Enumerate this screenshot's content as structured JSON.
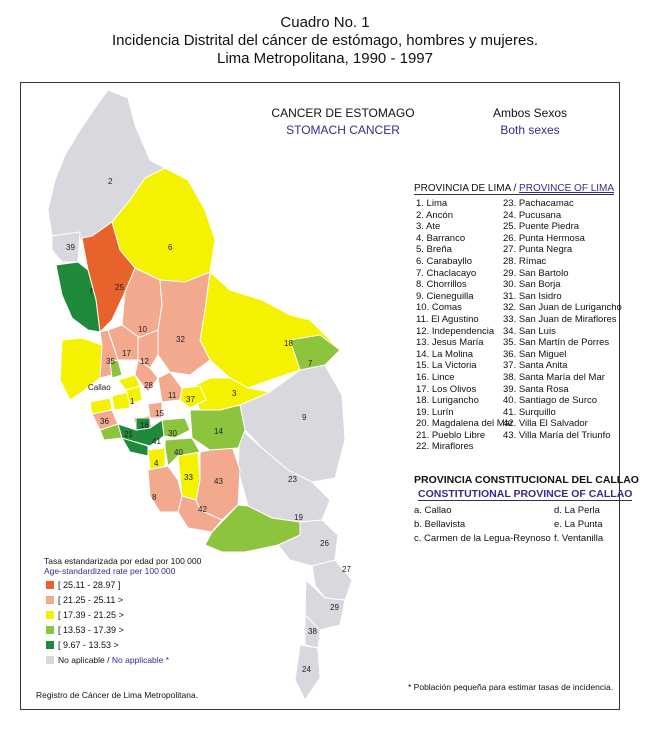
{
  "header": {
    "line1": "Cuadro No. 1",
    "line2": "Incidencia Distrital del cáncer de estómago, hombres y mujeres.",
    "line3": "Lima Metropolitana, 1990 - 1997"
  },
  "map_header": {
    "cancer_es": "CANCER DE ESTOMAGO",
    "cancer_en": "STOMACH CANCER",
    "sex_es": "Ambos Sexos",
    "sex_en": "Both sexes"
  },
  "province_lima": {
    "title_es": "PROVINCIA DE LIMA /",
    "title_en": "PROVINCE OF LIMA",
    "col1": [
      "1. Lima",
      "2. Ancón",
      "3. Ate",
      "4. Barranco",
      "5. Breña",
      "6. Carabayllo",
      "7. Chaclacayo",
      "8. Chorrillos",
      "9. Cieneguilla",
      "10. Comas",
      "11. El Agustino",
      "12. Independencia",
      "13. Jesus María",
      "14. La Molina",
      "15. La Victoria",
      "16. Lince",
      "17. Los Olivos",
      "18. Lurigancho",
      "19. Lurín",
      "20. Magdalena del Mar",
      "21. Pueblo Libre",
      "22. Miraflores"
    ],
    "col2": [
      "23. Pachacamac",
      "24. Pucusana",
      "25. Puente Piedra",
      "26. Punta Hermosa",
      "27. Punta Negra",
      "28. Rímac",
      "29. San Bartolo",
      "30. San Borja",
      "31. San Isidro",
      "32. San Juan de Lurigancho",
      "33. San Juan de Miraflores",
      "34. San Luis",
      "35. San Martín de Porres",
      "36. San Miguel",
      "37. Santa Anita",
      "38. Santa María del Mar",
      "39. Santa Rosa",
      "40. Santiago de Surco",
      "41. Surquillo",
      "42. Villa El Salvador",
      "43. Villa María del Triunfo"
    ]
  },
  "province_callao": {
    "title_es": "PROVINCIA CONSTITUCIONAL DEL CALLAO",
    "title_en": "CONSTITUTIONAL PROVINCE OF CALLAO",
    "col1": [
      "a. Callao",
      "b. Bellavista",
      "c. Carmen de la Legua-Reynoso"
    ],
    "col2": [
      "d. La Perla",
      "e. La Punta",
      "f. Ventanilla"
    ]
  },
  "legend": {
    "title_es": "Tasa estandarizada  por edad  por 100 000",
    "title_en": "Age-standardized  rate per 100 000",
    "items": [
      {
        "label": "[ 25.11 - 28.97 ]",
        "color": "#e8632c"
      },
      {
        "label": "[ 21.25 - 25.11 >",
        "color": "#f2a98e"
      },
      {
        "label": "[ 17.39 - 21.25 >",
        "color": "#f5f200"
      },
      {
        "label": "[ 13.53 - 17.39 >",
        "color": "#8cc43e"
      },
      {
        "label": "[   9.67 - 13.53 >",
        "color": "#1f8a3a"
      }
    ],
    "na_es": "No aplicable /",
    "na_en": "No applicable",
    "na_star": "*",
    "na_color": "#d9d8de"
  },
  "map_labels": {
    "d2": "2",
    "d39": "39",
    "d6": "6",
    "d25": "25",
    "df": "f",
    "d10": "10",
    "d32": "32",
    "d17": "17",
    "d35": "35",
    "d12": "12",
    "d18": "18",
    "d7": "7",
    "d28": "28",
    "callao": "Callao",
    "d3": "3",
    "d37": "37",
    "d9": "9",
    "d14": "14",
    "d30": "30",
    "d40": "40",
    "d4": "4",
    "d33": "33",
    "d43": "43",
    "d8": "8",
    "d42": "42",
    "d23": "23",
    "d19": "19",
    "d26": "26",
    "d27": "27",
    "d29": "29",
    "d38": "38",
    "d24": "24",
    "d1": "1",
    "d15": "15",
    "d16": "16",
    "d36": "36",
    "d21": "21",
    "d11": "11",
    "d41": "41"
  },
  "source": "Registro de Cáncer de Lima Metropolitana.",
  "footnote": "* Población pequeña para estimar tasas de incidencia."
}
